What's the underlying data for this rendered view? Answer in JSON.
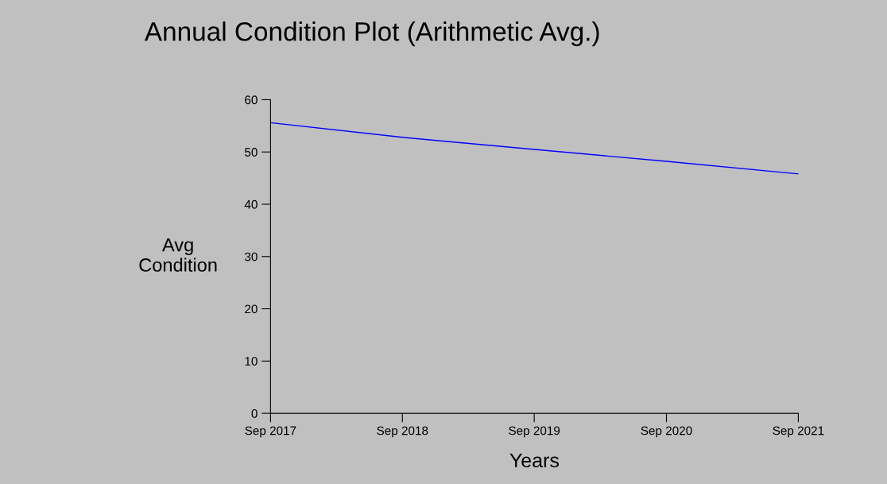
{
  "chart_data": {
    "type": "line",
    "title": "Annual Condition Plot (Arithmetic Avg.)",
    "xlabel": "Years",
    "ylabel": "Avg\nCondition",
    "x": [
      "2017-09",
      "2018-09",
      "2019-09",
      "2020-09",
      "2021-09"
    ],
    "series": [
      {
        "color": "#0000ff",
        "values": [
          55.6,
          52.8,
          50.5,
          48.2,
          45.8
        ]
      }
    ],
    "xlim": [
      "2017-09",
      "2021-09"
    ],
    "xticks": [
      {
        "value": "2017-09",
        "label": "Sep 2017"
      },
      {
        "value": "2018-09",
        "label": "Sep 2018"
      },
      {
        "value": "2019-09",
        "label": "Sep 2019"
      },
      {
        "value": "2020-09",
        "label": "Sep 2020"
      },
      {
        "value": "2021-09",
        "label": "Sep 2021"
      }
    ],
    "ylim": [
      0,
      60
    ],
    "yticks": [
      0,
      10,
      20,
      30,
      40,
      50,
      60
    ],
    "grid": false,
    "legend": false,
    "marker": "none",
    "line_style": "solid"
  }
}
